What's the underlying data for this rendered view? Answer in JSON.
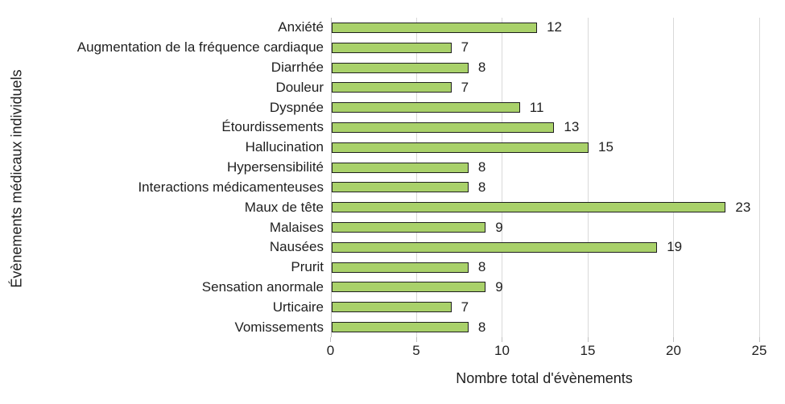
{
  "chart_data": {
    "type": "bar",
    "orientation": "horizontal",
    "title": "",
    "xlabel": "Nombre total d'évènements",
    "ylabel": "Évènements médicaux individuels",
    "categories": [
      "Anxiété",
      "Augmentation de la fréquence cardiaque",
      "Diarrhée",
      "Douleur",
      "Dyspnée",
      "Étourdissements",
      "Hallucination",
      "Hypersensibilité",
      "Interactions médicamenteuses",
      "Maux de tête",
      "Malaises",
      "Nausées",
      "Prurit",
      "Sensation anormale",
      "Urticaire",
      "Vomissements"
    ],
    "values": [
      12,
      7,
      8,
      7,
      11,
      13,
      15,
      8,
      8,
      23,
      9,
      19,
      8,
      9,
      7,
      8
    ],
    "xlim": [
      0,
      25
    ],
    "xticks": [
      0,
      5,
      10,
      15,
      20,
      25
    ],
    "grid": "vertical-only",
    "legend": "none",
    "data_labels": true,
    "colors": {
      "bar_fill": "#A9D16A",
      "bar_border": "#1E1E1E",
      "gridline": "#D9D9D9",
      "axis_line": "#BFBFBF",
      "text": "#1F1F1F",
      "background": "#FFFFFF"
    }
  }
}
